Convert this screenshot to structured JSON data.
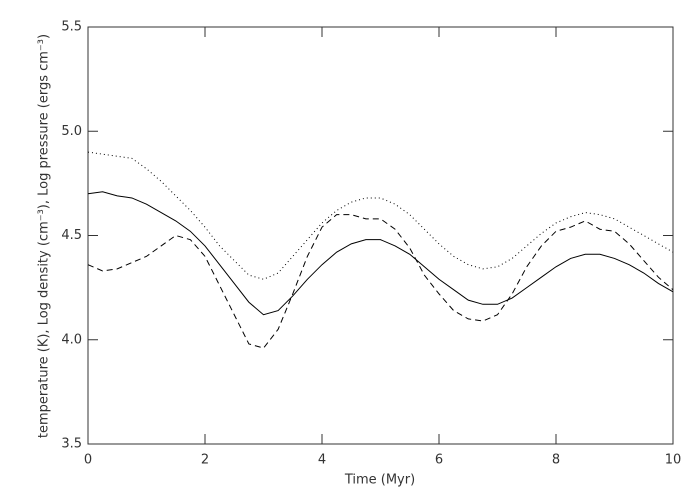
{
  "chart_data": {
    "type": "line",
    "xlabel": "Time (Myr)",
    "ylabel": "temperature (K), Log density (cm⁻³), Log pressure (ergs cm⁻³)",
    "x": [
      0,
      0.25,
      0.5,
      0.75,
      1,
      1.25,
      1.5,
      1.75,
      2,
      2.25,
      2.5,
      2.75,
      3,
      3.25,
      3.5,
      3.75,
      4,
      4.25,
      4.5,
      4.75,
      5,
      5.25,
      5.5,
      5.75,
      6,
      6.25,
      6.5,
      6.75,
      7,
      7.25,
      7.5,
      7.75,
      8,
      8.25,
      8.5,
      8.75,
      9,
      9.25,
      9.5,
      9.75,
      10
    ],
    "series": [
      {
        "color": "#000000",
        "dash": "solid",
        "values": [
          4.7,
          4.71,
          4.69,
          4.68,
          4.65,
          4.61,
          4.57,
          4.52,
          4.45,
          4.36,
          4.27,
          4.18,
          4.12,
          4.14,
          4.21,
          4.29,
          4.36,
          4.42,
          4.46,
          4.48,
          4.48,
          4.45,
          4.41,
          4.35,
          4.29,
          4.24,
          4.19,
          4.17,
          4.17,
          4.2,
          4.25,
          4.3,
          4.35,
          4.39,
          4.41,
          4.41,
          4.39,
          4.36,
          4.32,
          4.27,
          4.23
        ]
      },
      {
        "color": "#000000",
        "dash": "dashed",
        "values": [
          4.36,
          4.33,
          4.34,
          4.37,
          4.4,
          4.45,
          4.5,
          4.48,
          4.4,
          4.26,
          4.12,
          3.98,
          3.96,
          4.05,
          4.22,
          4.4,
          4.54,
          4.6,
          4.6,
          4.58,
          4.58,
          4.53,
          4.44,
          4.31,
          4.22,
          4.14,
          4.1,
          4.09,
          4.12,
          4.22,
          4.35,
          4.45,
          4.52,
          4.54,
          4.57,
          4.53,
          4.52,
          4.46,
          4.38,
          4.3,
          4.24
        ]
      },
      {
        "color": "#000000",
        "dash": "dotted",
        "values": [
          4.9,
          4.89,
          4.88,
          4.87,
          4.82,
          4.76,
          4.69,
          4.62,
          4.54,
          4.45,
          4.38,
          4.31,
          4.29,
          4.32,
          4.4,
          4.48,
          4.56,
          4.62,
          4.66,
          4.68,
          4.68,
          4.65,
          4.6,
          4.53,
          4.46,
          4.4,
          4.36,
          4.34,
          4.35,
          4.39,
          4.45,
          4.51,
          4.56,
          4.59,
          4.61,
          4.6,
          4.58,
          4.54,
          4.5,
          4.46,
          4.42
        ]
      }
    ],
    "xlim": [
      0,
      10
    ],
    "xticks": [
      0,
      2,
      4,
      6,
      8,
      10
    ],
    "ylim": [
      3.5,
      5.5
    ],
    "yticks": [
      3.5,
      {
        "value": 4,
        "label": "4.0"
      },
      4.5,
      {
        "value": 5,
        "label": "5.0"
      },
      5.5
    ],
    "grid": false
  }
}
